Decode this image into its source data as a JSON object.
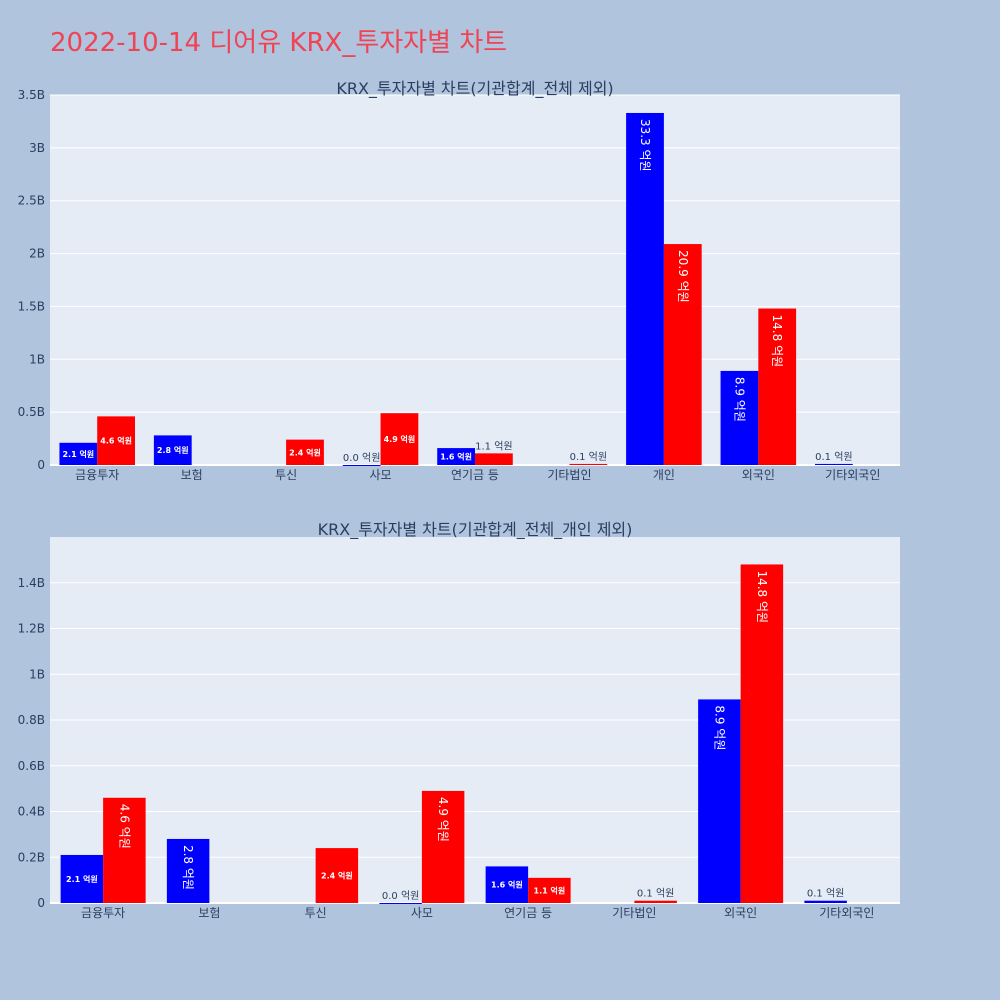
{
  "title": "2022-10-14 디어유 KRX_투자자별 차트",
  "colors": {
    "buy": "#0000ff",
    "sell": "#ff0000",
    "plot_bg": "#e5ecf6",
    "page_bg": "#b0c4de"
  },
  "chart_data": [
    {
      "type": "bar",
      "title": "KRX_투자자별 차트(기관합계_전체 제외)",
      "categories": [
        "금융투자",
        "보험",
        "투신",
        "사모",
        "연기금 등",
        "기타법인",
        "개인",
        "외국인",
        "기타외국인"
      ],
      "ylim": [
        0,
        3.5
      ],
      "yticks": [
        "0",
        "0.5B",
        "1B",
        "1.5B",
        "2B",
        "2.5B",
        "3B",
        "3.5B"
      ],
      "series": [
        {
          "values": [
            0.21,
            0.28,
            0,
            0.0,
            0.16,
            0,
            3.33,
            0.89,
            0.01
          ],
          "labels": [
            "2.1 억원",
            "2.8 억원",
            "",
            "0.0 억원",
            "1.6 억원",
            "",
            "33.3 억원",
            "8.9 억원",
            "0.1 억원"
          ]
        },
        {
          "values": [
            0.46,
            0,
            0.24,
            0.49,
            0.11,
            0.01,
            2.09,
            1.48,
            0
          ],
          "labels": [
            "4.6 억원",
            "",
            "2.4 억원",
            "4.9 억원",
            "1.1 억원",
            "0.1 억원",
            "20.9 억원",
            "14.8 억원",
            ""
          ]
        }
      ]
    },
    {
      "type": "bar",
      "title": "KRX_투자자별 차트(기관합계_전체_개인 제외)",
      "categories": [
        "금융투자",
        "보험",
        "투신",
        "사모",
        "연기금 등",
        "기타법인",
        "외국인",
        "기타외국인"
      ],
      "ylim": [
        0,
        1.6
      ],
      "yticks": [
        "0",
        "0.2B",
        "0.4B",
        "0.6B",
        "0.8B",
        "1B",
        "1.2B",
        "1.4B"
      ],
      "series": [
        {
          "values": [
            0.21,
            0.28,
            0,
            0.0,
            0.16,
            0,
            0.89,
            0.01
          ],
          "labels": [
            "2.1 억원",
            "2.8 억원",
            "",
            "0.0 억원",
            "1.6 억원",
            "",
            "8.9 억원",
            "0.1 억원"
          ]
        },
        {
          "values": [
            0.46,
            0,
            0.24,
            0.49,
            0.11,
            0.01,
            1.48,
            0
          ],
          "labels": [
            "4.6 억원",
            "",
            "2.4 억원",
            "4.9 억원",
            "1.1 억원",
            "0.1 억원",
            "14.8 억원",
            ""
          ]
        }
      ]
    }
  ]
}
